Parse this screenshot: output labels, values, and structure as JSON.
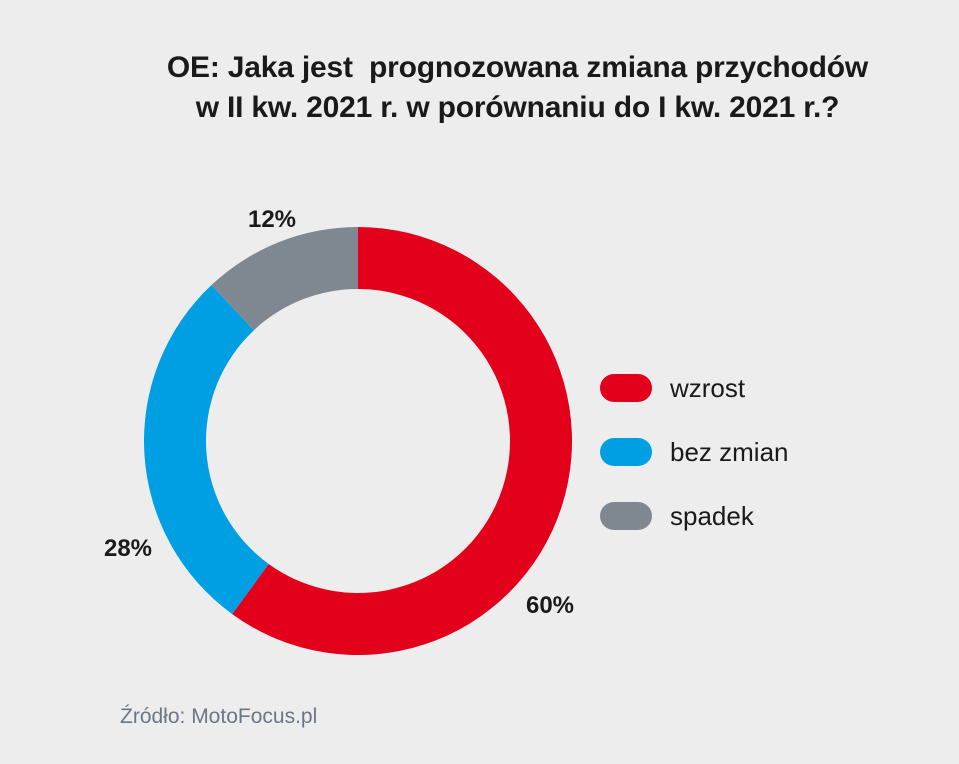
{
  "title": {
    "line1": "OE: Jaka jest  prognozowana zmiana przychodów",
    "line2": "w II kw. 2021 r. w porównaniu do I kw. 2021 r.?"
  },
  "source": "Źródło: MotoFocus.pl",
  "chart_data": {
    "type": "pie",
    "donut": true,
    "title": "OE: Jaka jest  prognozowana zmiana przychodów w II kw. 2021 r. w porównaniu do I kw. 2021 r.?",
    "categories": [
      "wzrost",
      "bez zmian",
      "spadek"
    ],
    "values": [
      60,
      28,
      12
    ],
    "value_labels": [
      "60%",
      "28%",
      "12%"
    ],
    "colors": [
      "#e2001a",
      "#009fe3",
      "#7f8891"
    ],
    "legend_placement": "right",
    "start_angle_deg": 0,
    "direction": "clockwise"
  }
}
